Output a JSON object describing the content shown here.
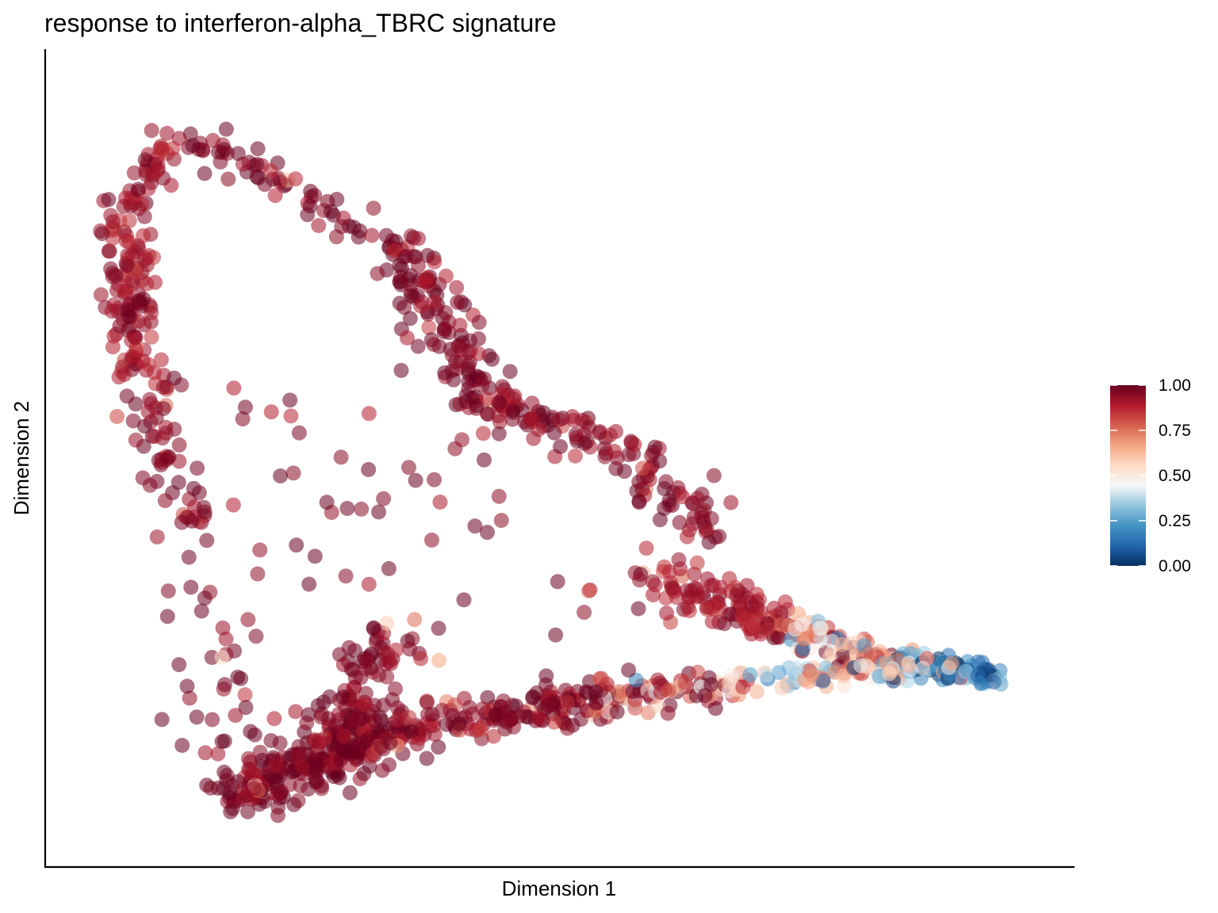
{
  "chart_data": {
    "type": "scatter",
    "title": "response to interferon-alpha_TBRC signature",
    "xlabel": "Dimension 1",
    "ylabel": "Dimension 2",
    "xlim": [
      0,
      100
    ],
    "ylim": [
      0,
      100
    ],
    "grid": false,
    "legend": {
      "type": "colorbar",
      "placement": "right",
      "range": [
        0,
        1
      ],
      "ticks": [
        "0.00",
        "0.25",
        "0.50",
        "0.75",
        "1.00"
      ]
    },
    "palette": [
      "#053061",
      "#2166ac",
      "#4393c3",
      "#92c5de",
      "#f7f7f7",
      "#fddbc7",
      "#f4a582",
      "#d6604d",
      "#b2182b",
      "#67001f"
    ],
    "point_alpha": 0.55,
    "structure": {
      "note_free": true,
      "segments": [
        {
          "x0": 10.0,
          "y0": 92.5,
          "x1": 4.5,
          "y1": 83.0,
          "n": 40,
          "s": 1.2,
          "v": 0.93
        },
        {
          "x0": 5.0,
          "y0": 82.0,
          "x1": 6.5,
          "y1": 61.0,
          "n": 120,
          "s": 1.4,
          "v": 0.92
        },
        {
          "x0": 6.5,
          "y0": 61.0,
          "x1": 12.5,
          "y1": 40.0,
          "n": 60,
          "s": 1.5,
          "v": 0.95
        },
        {
          "x0": 12.0,
          "y0": 93.0,
          "x1": 33.0,
          "y1": 78.0,
          "n": 60,
          "s": 1.3,
          "v": 0.96
        },
        {
          "x0": 33.0,
          "y0": 78.0,
          "x1": 42.0,
          "y1": 58.0,
          "n": 120,
          "s": 1.7,
          "v": 0.97
        },
        {
          "x0": 42.0,
          "y0": 58.0,
          "x1": 55.0,
          "y1": 52.0,
          "n": 80,
          "s": 1.8,
          "v": 0.96
        },
        {
          "x0": 55.0,
          "y0": 52.0,
          "x1": 67.0,
          "y1": 40.0,
          "n": 60,
          "s": 1.7,
          "v": 0.95
        },
        {
          "x0": 59.0,
          "y0": 34.0,
          "x1": 74.0,
          "y1": 27.5,
          "n": 120,
          "s": 1.5,
          "v": 0.9
        },
        {
          "x0": 74.0,
          "y0": 27.5,
          "x1": 85.0,
          "y1": 22.0,
          "n": 100,
          "s": 1.1,
          "v": 0.62
        },
        {
          "x0": 85.0,
          "y0": 23.0,
          "x1": 95.0,
          "y1": 21.0,
          "n": 110,
          "s": 0.8,
          "v": 0.18
        },
        {
          "x0": 16.5,
          "y0": 5.5,
          "x1": 32.0,
          "y1": 13.5,
          "n": 260,
          "s": 1.8,
          "v": 0.98
        },
        {
          "x0": 32.0,
          "y0": 13.5,
          "x1": 54.0,
          "y1": 18.0,
          "n": 150,
          "s": 1.4,
          "v": 0.95
        },
        {
          "x0": 54.0,
          "y0": 18.0,
          "x1": 68.0,
          "y1": 20.0,
          "n": 80,
          "s": 1.2,
          "v": 0.82
        },
        {
          "x0": 68.0,
          "y0": 20.0,
          "x1": 90.0,
          "y1": 23.0,
          "n": 80,
          "s": 0.8,
          "v": 0.56
        },
        {
          "x0": 26.0,
          "y0": 13.0,
          "x1": 34.0,
          "y1": 28.0,
          "n": 90,
          "s": 1.8,
          "v": 0.96
        },
        {
          "x0": 14.0,
          "y0": 35.0,
          "x1": 14.0,
          "y1": 10.0,
          "n": 35,
          "s": 2.5,
          "v": 0.97
        },
        {
          "x0": 20.0,
          "y0": 58.0,
          "x1": 46.0,
          "y1": 30.0,
          "n": 45,
          "s": 6.5,
          "v": 0.97
        }
      ]
    }
  }
}
